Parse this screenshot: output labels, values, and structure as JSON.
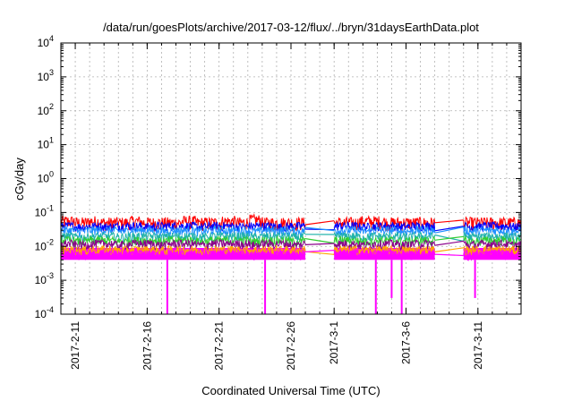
{
  "chart_data": {
    "type": "line",
    "title": "/data/run/goesPlots/archive/2017-03-12/flux/../bryn/31daysEarthData.plot",
    "xlabel": "Coordinated Universal Time (UTC)",
    "ylabel": "cGy/day",
    "y_scale": "log",
    "ylim": [
      0.0001,
      10000
    ],
    "y_ticks": [
      {
        "mant": "10",
        "exp": "-4",
        "value": 0.0001
      },
      {
        "mant": "10",
        "exp": "-3",
        "value": 0.001
      },
      {
        "mant": "10",
        "exp": "-2",
        "value": 0.01
      },
      {
        "mant": "10",
        "exp": "-1",
        "value": 0.1
      },
      {
        "mant": "10",
        "exp": "0",
        "value": 1
      },
      {
        "mant": "10",
        "exp": "1",
        "value": 10
      },
      {
        "mant": "10",
        "exp": "2",
        "value": 100
      },
      {
        "mant": "10",
        "exp": "3",
        "value": 1000
      },
      {
        "mant": "10",
        "exp": "4",
        "value": 10000
      }
    ],
    "x_range": [
      "2017-02-10",
      "2017-03-14"
    ],
    "x_ticks": [
      "2017-2-11",
      "2017-2-16",
      "2017-2-21",
      "2017-2-26",
      "2017-3-1",
      "2017-3-6",
      "2017-3-11"
    ],
    "x_tick_dates": [
      "2017-02-11",
      "2017-02-16",
      "2017-02-21",
      "2017-02-26",
      "2017-03-01",
      "2017-03-06",
      "2017-03-11"
    ],
    "grid": true,
    "data_segments": [
      {
        "start": "2017-02-10",
        "end": "2017-02-27"
      },
      {
        "start": "2017-03-01",
        "end": "2017-03-08"
      },
      {
        "start": "2017-03-10",
        "end": "2017-03-14"
      }
    ],
    "series": [
      {
        "color": "#ff0000",
        "values": [
          0.055,
          0.05,
          0.055,
          0.05,
          0.05,
          0.055,
          0.05,
          0.05,
          0.05,
          0.055,
          0.05,
          0.05,
          0.055,
          0.05,
          0.06,
          0.05,
          0.05,
          0.05,
          0.05,
          0.05,
          0.055,
          0.055,
          0.05,
          0.05,
          0.05,
          0.05,
          0.05,
          0.05,
          0.05,
          0.05
        ]
      },
      {
        "color": "#0000ff",
        "values": [
          0.04,
          0.038,
          0.04,
          0.038,
          0.04,
          0.04,
          0.038,
          0.04,
          0.04,
          0.04,
          0.038,
          0.04,
          0.04,
          0.038,
          0.04,
          0.04,
          0.038,
          0.04,
          0.04,
          0.04,
          0.038,
          0.04,
          0.04,
          0.038,
          0.04,
          0.04,
          0.038,
          0.04,
          0.04,
          0.038
        ]
      },
      {
        "color": "#1e90ff",
        "values": [
          0.03,
          0.028,
          0.03,
          0.03,
          0.028,
          0.03,
          0.03,
          0.028,
          0.03,
          0.03,
          0.028,
          0.03,
          0.03,
          0.03,
          0.028,
          0.03,
          0.03,
          0.028,
          0.03,
          0.03,
          0.028,
          0.03,
          0.03,
          0.028,
          0.03,
          0.03,
          0.028,
          0.03,
          0.03,
          0.028
        ]
      },
      {
        "color": "#20b2aa",
        "values": [
          0.02,
          0.019,
          0.02,
          0.02,
          0.019,
          0.02,
          0.02,
          0.019,
          0.02,
          0.02,
          0.019,
          0.02,
          0.02,
          0.02,
          0.019,
          0.02,
          0.02,
          0.019,
          0.02,
          0.02,
          0.019,
          0.02,
          0.02,
          0.019,
          0.02,
          0.02,
          0.019,
          0.02,
          0.02,
          0.019
        ]
      },
      {
        "color": "#32cd32",
        "values": [
          0.015,
          0.014,
          0.015,
          0.015,
          0.014,
          0.015,
          0.015,
          0.014,
          0.015,
          0.015,
          0.014,
          0.015,
          0.015,
          0.015,
          0.014,
          0.015,
          0.015,
          0.014,
          0.015,
          0.015,
          0.014,
          0.015,
          0.015,
          0.014,
          0.015,
          0.015,
          0.014,
          0.015,
          0.015,
          0.014
        ]
      },
      {
        "color": "#8b008b",
        "values": [
          0.012,
          0.011,
          0.012,
          0.012,
          0.011,
          0.012,
          0.012,
          0.011,
          0.012,
          0.012,
          0.011,
          0.012,
          0.012,
          0.012,
          0.011,
          0.012,
          0.012,
          0.011,
          0.012,
          0.012,
          0.011,
          0.012,
          0.012,
          0.011,
          0.012,
          0.012,
          0.011,
          0.012,
          0.012,
          0.011
        ]
      },
      {
        "color": "#ffa500",
        "values": [
          0.008,
          0.0078,
          0.008,
          0.008,
          0.0078,
          0.008,
          0.008,
          0.0078,
          0.008,
          0.008,
          0.0078,
          0.008,
          0.008,
          0.008,
          0.0078,
          0.008,
          0.008,
          0.0078,
          0.008,
          0.008,
          0.0078,
          0.008,
          0.008,
          0.0078,
          0.008,
          0.008,
          0.0078,
          0.008,
          0.008,
          0.0078
        ]
      },
      {
        "color": "#ff00ff",
        "values": [
          0.006,
          0.0055,
          0.006,
          0.006,
          0.0055,
          0.006,
          0.006,
          0.0055,
          0.006,
          0.006,
          0.0055,
          0.006,
          0.006,
          0.006,
          0.0055,
          0.006,
          0.006,
          0.0055,
          0.006,
          0.006,
          0.0055,
          0.006,
          0.006,
          0.0055,
          0.006,
          0.006,
          0.0055,
          0.006,
          0.006,
          0.0055
        ]
      }
    ],
    "noise_band": {
      "color": "#ff00ff",
      "low": 0.004,
      "high": 0.009
    },
    "dips": [
      {
        "date": "2017-02-17.4",
        "value": 0.0001
      },
      {
        "date": "2017-02-24.2",
        "value": 0.0001
      },
      {
        "date": "2017-03-03.9",
        "value": 0.0001
      },
      {
        "date": "2017-03-05.0",
        "value": 0.0003
      },
      {
        "date": "2017-03-05.7",
        "value": 0.0001
      },
      {
        "date": "2017-03-10.8",
        "value": 0.0003
      }
    ]
  }
}
